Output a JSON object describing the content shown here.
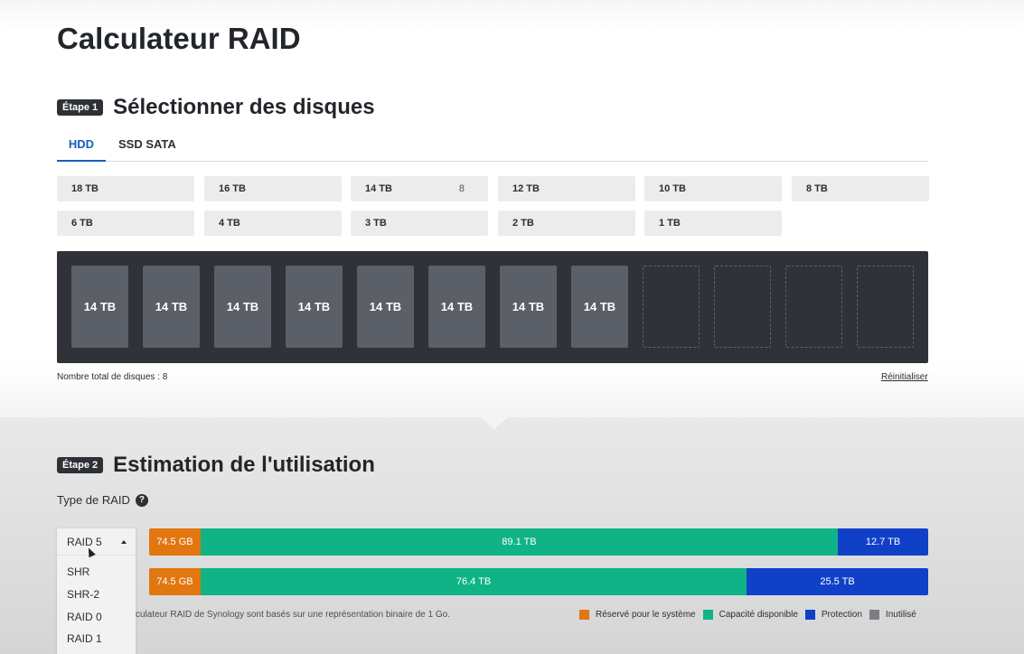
{
  "page": {
    "title": "Calculateur RAID"
  },
  "step1": {
    "badge": "Étape 1",
    "title": "Sélectionner des disques",
    "tabs": [
      {
        "label": "HDD",
        "active": true
      },
      {
        "label": "SSD SATA",
        "active": false
      }
    ],
    "capacities": [
      {
        "label": "18 TB",
        "count": ""
      },
      {
        "label": "16 TB",
        "count": ""
      },
      {
        "label": "14 TB",
        "count": "8"
      },
      {
        "label": "12 TB",
        "count": ""
      },
      {
        "label": "10 TB",
        "count": ""
      },
      {
        "label": "8 TB",
        "count": ""
      },
      {
        "label": "6 TB",
        "count": ""
      },
      {
        "label": "4 TB",
        "count": ""
      },
      {
        "label": "3 TB",
        "count": ""
      },
      {
        "label": "2 TB",
        "count": ""
      },
      {
        "label": "1 TB",
        "count": ""
      }
    ],
    "bays": [
      "14 TB",
      "14 TB",
      "14 TB",
      "14 TB",
      "14 TB",
      "14 TB",
      "14 TB",
      "14 TB",
      "",
      "",
      "",
      ""
    ],
    "total_disks_label": "Nombre total de disques : 8",
    "reset_label": "Réinitialiser"
  },
  "step2": {
    "badge": "Étape 2",
    "title": "Estimation de l'utilisation",
    "raid_type_label": "Type de RAID",
    "help_glyph": "?",
    "dropdown": {
      "selected": "RAID 5",
      "options": [
        "SHR",
        "SHR-2",
        "RAID 0",
        "RAID 1"
      ]
    },
    "bars": [
      {
        "segments": [
          {
            "label": "74.5 GB",
            "kind": "system",
            "share": 0.066
          },
          {
            "label": "89.1 TB",
            "kind": "available",
            "share": 0.818
          },
          {
            "label": "12.7 TB",
            "kind": "protection",
            "share": 0.116
          }
        ]
      },
      {
        "segments": [
          {
            "label": "74.5 GB",
            "kind": "system",
            "share": 0.066
          },
          {
            "label": "76.4 TB",
            "kind": "available",
            "share": 0.701
          },
          {
            "label": "25.5 TB",
            "kind": "protection",
            "share": 0.233
          }
        ]
      }
    ],
    "footnote": "culateur RAID de Synology sont basés sur une représentation binaire de 1 Go.",
    "legend": [
      {
        "label": "Réservé pour le système",
        "kind": "system"
      },
      {
        "label": "Capacité disponible",
        "kind": "available"
      },
      {
        "label": "Protection",
        "kind": "protection"
      },
      {
        "label": "Inutilisé",
        "kind": "unused"
      }
    ]
  },
  "colors": {
    "system": "#e2760f",
    "available": "#0fb386",
    "protection": "#1140c8",
    "unused": "#7b7e83",
    "accent": "#1560bd"
  }
}
